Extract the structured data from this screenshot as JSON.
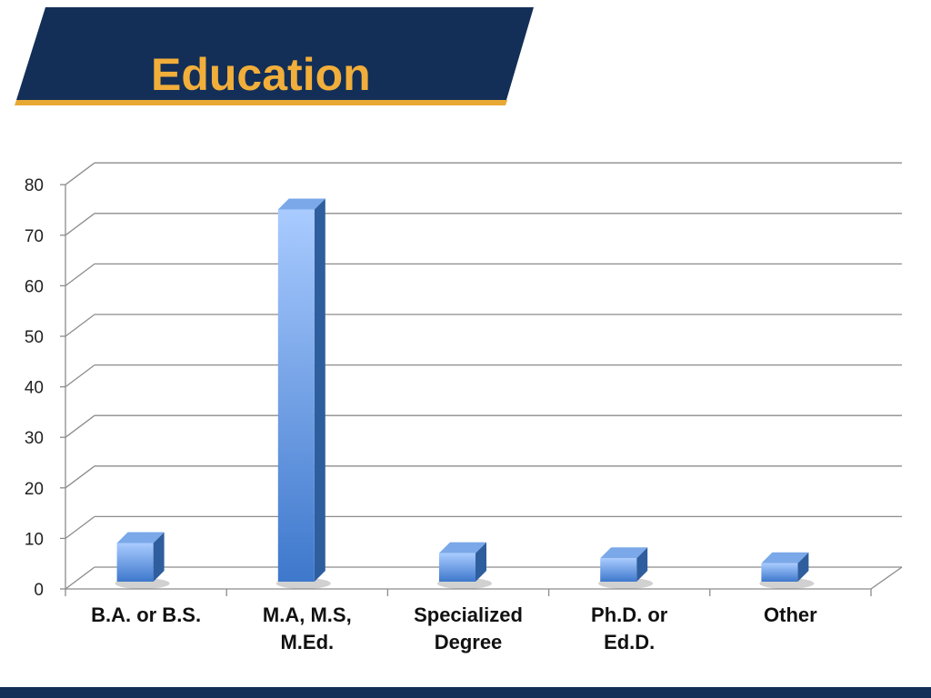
{
  "slide": {
    "title": "Education",
    "title_color": "#F2AE3A",
    "banner_color": "#132F57",
    "banner_accent": "#E8A934",
    "footer_color": "#132F57"
  },
  "chart_data": {
    "type": "bar",
    "title": "",
    "xlabel": "",
    "ylabel": "",
    "categories": [
      [
        "B.A. or B.S."
      ],
      [
        "M.A, M.S,",
        "M.Ed."
      ],
      [
        "Specialized",
        "Degree"
      ],
      [
        "Ph.D. or",
        "Ed.D."
      ],
      [
        "Other"
      ]
    ],
    "values": [
      8,
      74,
      6,
      5,
      4
    ],
    "ylim": [
      0,
      80
    ],
    "yticks": [
      0,
      10,
      20,
      30,
      40,
      50,
      60,
      70,
      80
    ],
    "grid": true,
    "legend": "none",
    "bar_color": "#4F86D6",
    "bar_highlight": "#A9CBFF",
    "bar_side_color": "#2F5E9E",
    "bar_top_color": "#7AA8E8"
  }
}
